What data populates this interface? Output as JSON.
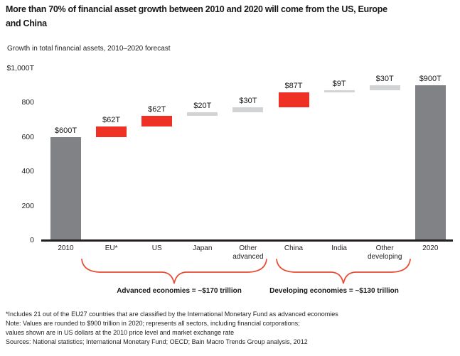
{
  "header": {
    "title_line1": "More than 70% of financial asset growth between 2010 and 2020 will come from the US, Europe",
    "title_line2": "and China",
    "subtitle": "Growth in total financial assets, 2010–2020 forecast"
  },
  "chart_data": {
    "type": "bar",
    "variant": "waterfall",
    "title": "Growth in total financial assets, 2010–2020 forecast",
    "y_axis": {
      "top_label": "$1,000T",
      "ticks": [
        0,
        200,
        400,
        600,
        800
      ],
      "max": 1000,
      "unit": "trillions of US dollars"
    },
    "grid": "off",
    "bars": [
      {
        "category": "2010",
        "label": "$600T",
        "start": 0,
        "end": 600,
        "color": "dark_gray"
      },
      {
        "category": "EU*",
        "label": "$62T",
        "start": 600,
        "end": 662,
        "color": "red"
      },
      {
        "category": "US",
        "label": "$62T",
        "start": 662,
        "end": 724,
        "color": "red"
      },
      {
        "category": "Japan",
        "label": "$20T",
        "start": 724,
        "end": 744,
        "color": "light_gray"
      },
      {
        "category": "Other advanced",
        "label": "$30T",
        "start": 744,
        "end": 774,
        "color": "light_gray"
      },
      {
        "category": "China",
        "label": "$87T",
        "start": 774,
        "end": 861,
        "color": "red"
      },
      {
        "category": "India",
        "label": "$9T",
        "start": 861,
        "end": 870,
        "color": "light_gray"
      },
      {
        "category": "Other developing",
        "label": "$30T",
        "start": 870,
        "end": 900,
        "color": "light_gray"
      },
      {
        "category": "2020",
        "label": "$900T",
        "start": 0,
        "end": 900,
        "color": "dark_gray"
      }
    ],
    "braces": [
      {
        "text": "Advanced economies = ~$170 trillion",
        "from_category": "EU*",
        "to_category": "Other advanced"
      },
      {
        "text": "Developing economies = ~$130 trillion",
        "from_category": "China",
        "to_category": "Other developing"
      }
    ],
    "colors": {
      "red": "#ee3124",
      "dark_gray": "#808285",
      "light_gray": "#d1d3d4",
      "axis": "#231f20",
      "brace": "#e84a33"
    }
  },
  "footnotes": [
    "*Includes 21 out of the EU27 countries that are classified by the International Monetary Fund as advanced economies",
    "Note: Values are rounded to $900 trillion in 2020; represents all sectors, including financial corporations;",
    "values shown are in US dollars at the 2010 price level and market exchange rate",
    "Sources: National statistics; International Monetary Fund; OECD; Bain Macro Trends Group analysis, 2012"
  ]
}
